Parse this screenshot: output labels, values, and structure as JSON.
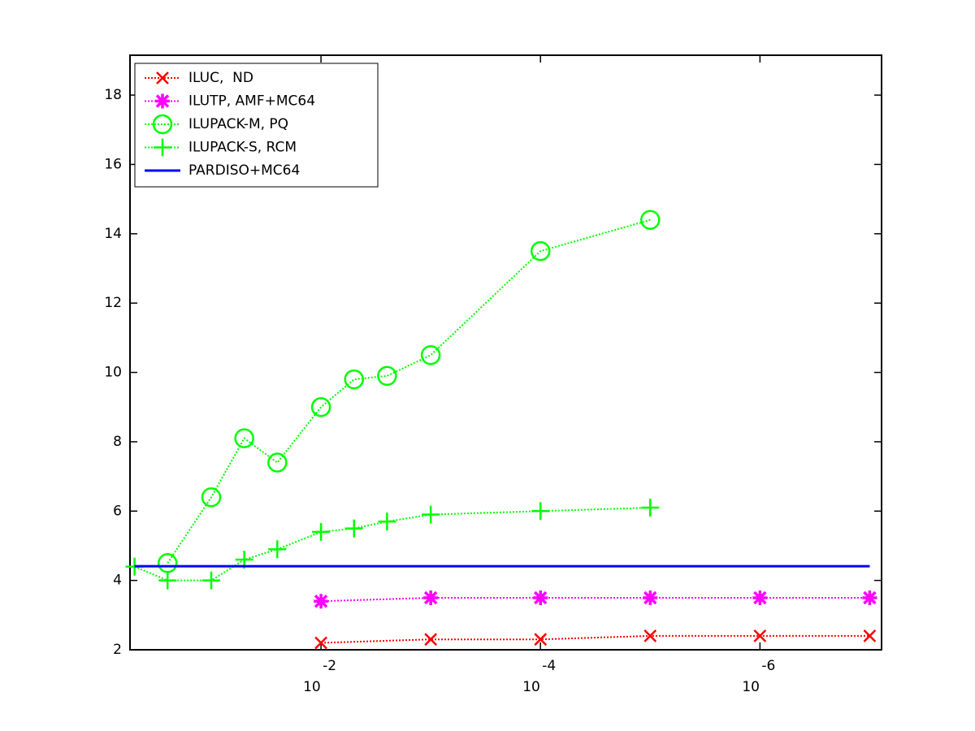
{
  "chart_data": {
    "type": "line",
    "x_scale": "log",
    "x_reversed": true,
    "xlim": [
      0.55,
      7.8e-08
    ],
    "ylim": [
      2,
      19.15
    ],
    "xticks": [
      {
        "value": 0.01,
        "label": "10",
        "exponent": "-2"
      },
      {
        "value": 0.0001,
        "label": "10",
        "exponent": "-4"
      },
      {
        "value": 1e-06,
        "label": "10",
        "exponent": "-6"
      }
    ],
    "yticks": [
      2,
      4,
      6,
      8,
      10,
      12,
      14,
      16,
      18
    ],
    "legend": "upper left",
    "series": [
      {
        "name": "ILUC,  ND",
        "color": "#ff0000",
        "marker": "x",
        "linestyle": "dotted",
        "x": [
          0.01,
          0.001,
          0.0001,
          1e-05,
          1e-06,
          1e-07
        ],
        "values": [
          2.2,
          2.3,
          2.3,
          2.4,
          2.4,
          2.4
        ]
      },
      {
        "name": "ILUTP, AMF+MC64",
        "color": "#ff00ff",
        "marker": "asterisk",
        "linestyle": "dotted",
        "x": [
          0.01,
          0.001,
          0.0001,
          1e-05,
          1e-06,
          1e-07
        ],
        "values": [
          3.4,
          3.5,
          3.5,
          3.5,
          3.5,
          3.5
        ]
      },
      {
        "name": "ILUPACK-M, PQ",
        "color": "#00ff00",
        "marker": "circle",
        "linestyle": "dotted",
        "x": [
          0.25,
          0.1,
          0.05,
          0.025,
          0.01,
          0.005,
          0.0025,
          0.001,
          0.0001,
          1e-05
        ],
        "values": [
          4.5,
          6.4,
          8.1,
          7.4,
          9.0,
          9.8,
          9.9,
          10.5,
          13.5,
          14.4
        ]
      },
      {
        "name": "ILUPACK-S, RCM",
        "color": "#00ff00",
        "marker": "plus",
        "linestyle": "dotted",
        "x": [
          0.5,
          0.25,
          0.1,
          0.05,
          0.025,
          0.01,
          0.005,
          0.0025,
          0.001,
          0.0001,
          1e-05
        ],
        "values": [
          4.4,
          4.0,
          4.0,
          4.6,
          4.9,
          5.4,
          5.5,
          5.7,
          5.9,
          6.0,
          6.1
        ]
      },
      {
        "name": "PARDISO+MC64",
        "color": "#0000ff",
        "marker": "none",
        "linestyle": "solid",
        "x": [
          0.5,
          1e-07
        ],
        "values": [
          4.41,
          4.41
        ]
      }
    ]
  }
}
